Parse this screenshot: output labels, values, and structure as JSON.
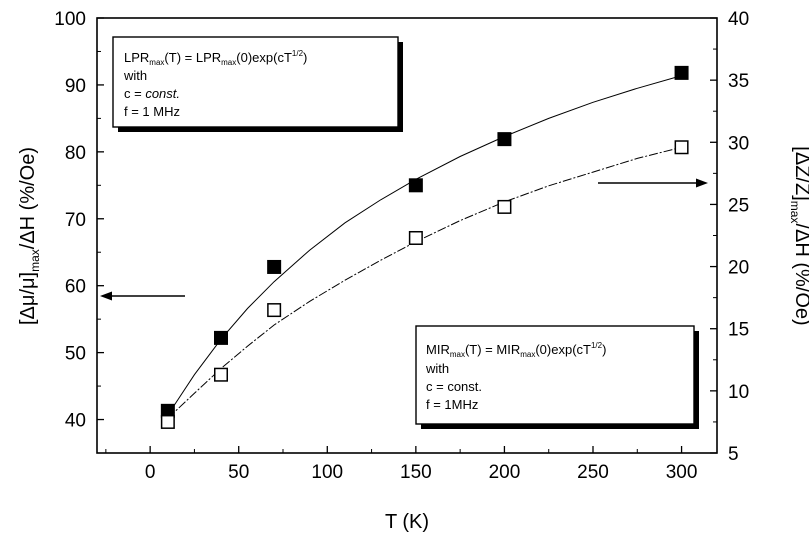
{
  "chart_data": {
    "type": "scatter",
    "xlabel": "T (K)",
    "ylabel_left": {
      "main": "[Δμ/μ]",
      "sub": "max",
      "rest": "/ΔH (%/Oe)"
    },
    "ylabel_right": {
      "main": "[ΔZ/Z]",
      "sub": "max",
      "rest": "/ΔH (%/Oe)"
    },
    "xlim": [
      -30,
      320
    ],
    "ylim_left": [
      35,
      100
    ],
    "ylim_right": [
      5,
      40
    ],
    "x_ticks": [
      0,
      50,
      100,
      150,
      200,
      250,
      300
    ],
    "y_ticks_left": [
      40,
      50,
      60,
      70,
      80,
      90,
      100
    ],
    "y_ticks_right": [
      5,
      10,
      15,
      20,
      25,
      30,
      35,
      40
    ],
    "series": [
      {
        "axis": "left",
        "marker": "filled-square",
        "x": [
          10,
          40,
          70,
          150,
          200,
          300
        ],
        "y": [
          41.3,
          52.2,
          62.8,
          75.0,
          81.9,
          91.8
        ],
        "fit_x": [
          10,
          25,
          40,
          55,
          70,
          90,
          110,
          130,
          150,
          175,
          200,
          225,
          250,
          275,
          300
        ],
        "fit_y": [
          40.7,
          46.7,
          52.0,
          56.6,
          60.6,
          65.3,
          69.4,
          72.8,
          75.9,
          79.3,
          82.3,
          85.0,
          87.4,
          89.5,
          91.4
        ]
      },
      {
        "axis": "right",
        "marker": "open-square",
        "x": [
          10,
          40,
          70,
          150,
          200,
          300
        ],
        "y": [
          7.5,
          11.3,
          16.5,
          22.3,
          24.8,
          29.6
        ],
        "fit_x": [
          10,
          25,
          40,
          55,
          70,
          90,
          110,
          130,
          150,
          175,
          200,
          225,
          250,
          275,
          300
        ],
        "fit_y": [
          7.8,
          9.8,
          11.8,
          13.6,
          15.3,
          17.2,
          18.9,
          20.5,
          22.0,
          23.7,
          25.2,
          26.5,
          27.6,
          28.7,
          29.6
        ]
      }
    ],
    "annotations": {
      "box1": {
        "line1": {
          "a": "LPR",
          "a_sub": "max",
          "b": "(T) = LPR",
          "b_sub": "max",
          "c": "(0)exp(cT",
          "sup": "1/2",
          "d": ")"
        },
        "line2": "with",
        "line3": {
          "a": "c = ",
          "b": "const."
        },
        "line4": "f = 1 MHz"
      },
      "box2": {
        "line1": {
          "a": "MIR",
          "a_sub": "max",
          "b": "(T) = MIR",
          "b_sub": "max",
          "c": "(0)exp(cT",
          "sup": "1/2",
          "d": ")"
        },
        "line2": "with",
        "line3": "c = const.",
        "line4": "f = 1MHz"
      }
    }
  }
}
